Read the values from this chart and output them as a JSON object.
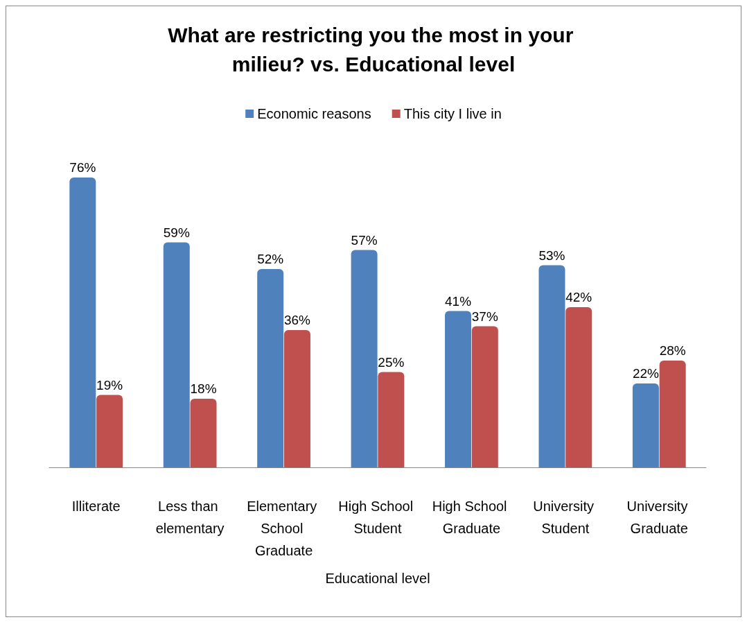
{
  "chart_data": {
    "type": "bar",
    "title": "What are restricting you the most in your milieu? vs. Educational level",
    "xlabel": "Educational level",
    "categories": [
      "Illiterate",
      "Less than elementary",
      "Elementary School Graduate",
      "High School Student",
      "High School Graduate",
      "University Student",
      "University Graduate"
    ],
    "series": [
      {
        "name": "Economic reasons",
        "color": "#4f81bd",
        "values": [
          76,
          59,
          52,
          57,
          41,
          53,
          22
        ],
        "value_labels": [
          "76%",
          "59%",
          "52%",
          "57%",
          "41%",
          "53%",
          "22%"
        ]
      },
      {
        "name": "This city I live in",
        "color": "#c0504d",
        "values": [
          19,
          18,
          36,
          25,
          37,
          42,
          28
        ],
        "value_labels": [
          "19%",
          "18%",
          "36%",
          "25%",
          "37%",
          "42%",
          "28%"
        ]
      }
    ],
    "tick_labels": "x",
    "legend": "top",
    "grid": false
  }
}
